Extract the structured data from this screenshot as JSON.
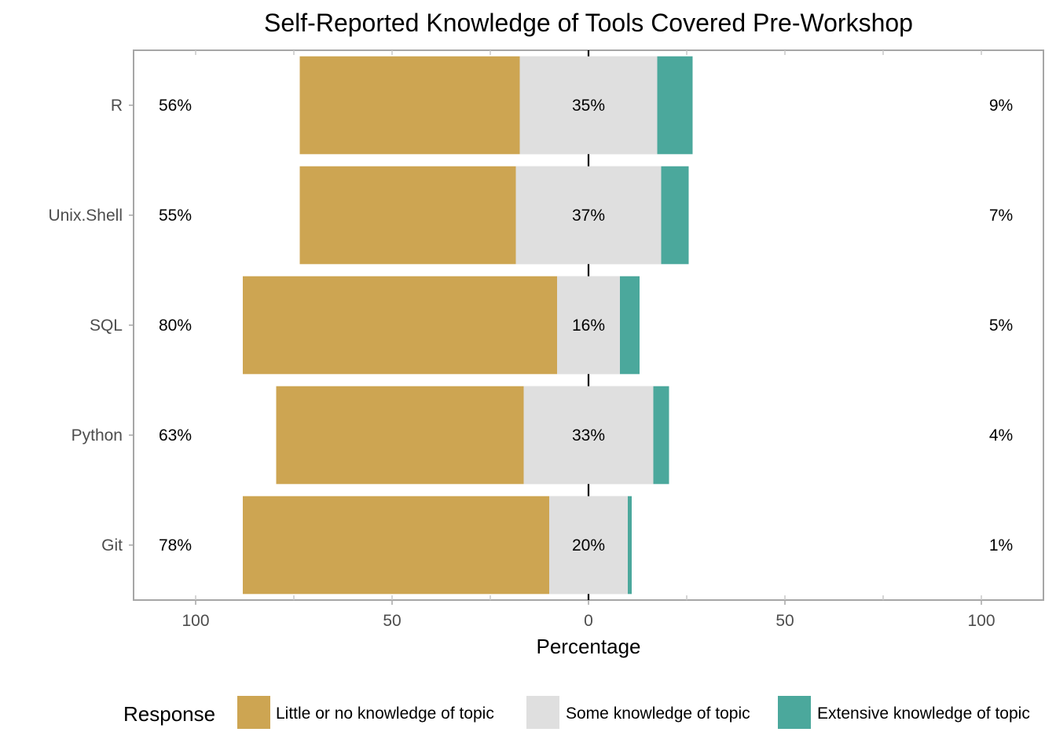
{
  "chart_data": {
    "type": "bar",
    "orientation": "horizontal-diverging",
    "title": "Self-Reported Knowledge of Tools Covered Pre-Workshop",
    "xlabel": "Percentage",
    "ylabel": "",
    "xlim": [
      -115,
      115
    ],
    "xticks": [
      -100,
      -50,
      0,
      50,
      100
    ],
    "xtick_labels": [
      "100",
      "50",
      "0",
      "50",
      "100"
    ],
    "categories": [
      "R",
      "Unix.Shell",
      "SQL",
      "Python",
      "Git"
    ],
    "series": [
      {
        "name": "Little or no knowledge of topic",
        "color": "#CDA552",
        "values": [
          56,
          55,
          80,
          63,
          78
        ]
      },
      {
        "name": "Some knowledge of topic",
        "color": "#DFDFDF",
        "values": [
          35,
          37,
          16,
          33,
          20
        ]
      },
      {
        "name": "Extensive knowledge of topic",
        "color": "#4BA89C",
        "values": [
          9,
          7,
          5,
          4,
          1
        ]
      }
    ],
    "left_labels": [
      "56%",
      "55%",
      "80%",
      "63%",
      "78%"
    ],
    "center_labels": [
      "35%",
      "37%",
      "16%",
      "33%",
      "20%"
    ],
    "right_labels": [
      "9%",
      "7%",
      "5%",
      "4%",
      "1%"
    ],
    "legend": {
      "title": "Response",
      "position": "bottom"
    },
    "grid": false
  }
}
